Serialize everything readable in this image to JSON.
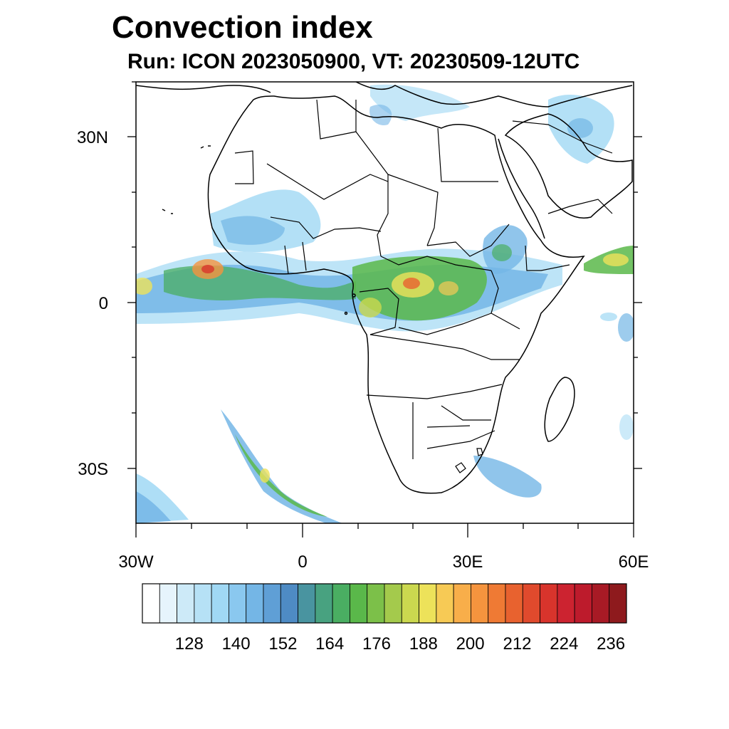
{
  "title": "Convection index",
  "subtitle": "Run: ICON 2023050900,  VT: 20230509-12UTC",
  "lat_labels": [
    "30N",
    "0",
    "30S"
  ],
  "lon_labels": [
    "30W",
    "0",
    "30E",
    "60E"
  ],
  "colorbar": {
    "labels": [
      "128",
      "140",
      "152",
      "164",
      "176",
      "188",
      "200",
      "212",
      "224",
      "236"
    ],
    "colors": [
      "#ffffff",
      "#e6f4fc",
      "#cdeaf8",
      "#b6e1f6",
      "#a0d8f4",
      "#8ac8ef",
      "#74b6e6",
      "#5f9fd6",
      "#4e8bc4",
      "#4994a0",
      "#48a280",
      "#4aae62",
      "#5ab84a",
      "#7cc049",
      "#a4ca4c",
      "#cbd84f",
      "#ede25a",
      "#f7ca55",
      "#f8ae4a",
      "#f5943e",
      "#ef7a34",
      "#e8622f",
      "#e04a2d",
      "#d8342c",
      "#cc2330",
      "#bd1b2c",
      "#a81a25",
      "#8e1a1d"
    ]
  }
}
